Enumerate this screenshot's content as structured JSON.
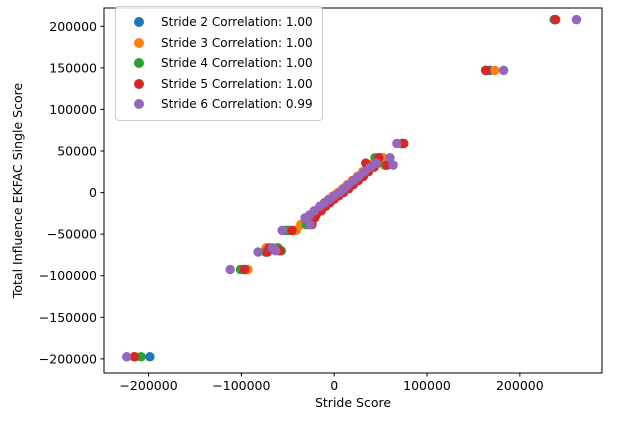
{
  "figure": {
    "background": "#ffffff",
    "axes_edge_color": "#000000"
  },
  "chart_data": {
    "type": "scatter",
    "title": "",
    "xlabel": "Stride Score",
    "ylabel": "Total Influence EKFAC Single Score",
    "xlim": [
      -248000,
      288500
    ],
    "ylim": [
      -217000,
      222000
    ],
    "xticks": [
      -200000,
      -100000,
      0,
      100000,
      200000
    ],
    "yticks": [
      -200000,
      -150000,
      -100000,
      -50000,
      0,
      50000,
      100000,
      150000,
      200000
    ],
    "grid": false,
    "legend_position": "upper left",
    "marker_diameter_px": 9.5,
    "series": [
      {
        "name": "Stride 2 Correlation: 1.00",
        "correlation": "1.00",
        "color": "#1f77b4",
        "points": [
          [
            -198500,
            -197500
          ],
          [
            -97000,
            -92500
          ],
          [
            -73000,
            -71500
          ],
          [
            -59000,
            -70000
          ],
          [
            -61000,
            -66500
          ],
          [
            -52000,
            -45500
          ],
          [
            -28000,
            -30500
          ],
          [
            -27000,
            -38500
          ],
          [
            -24000,
            -27000
          ],
          [
            -18500,
            -22000
          ],
          [
            -13000,
            -16500
          ],
          [
            -8000,
            -12000
          ],
          [
            -3500,
            -8000
          ],
          [
            1500,
            -4000
          ],
          [
            6000,
            0
          ],
          [
            11000,
            4500
          ],
          [
            16000,
            9500
          ],
          [
            21000,
            14500
          ],
          [
            26500,
            19500
          ],
          [
            32000,
            25000
          ],
          [
            38000,
            30500
          ],
          [
            44000,
            35500
          ],
          [
            49000,
            42000
          ],
          [
            55000,
            33000
          ],
          [
            73000,
            59000
          ],
          [
            167500,
            147000
          ],
          [
            237000,
            208000
          ]
        ]
      },
      {
        "name": "Stride 3 Correlation: 1.00",
        "correlation": "1.00",
        "color": "#ff7f0e",
        "points": [
          [
            -214000,
            -197500
          ],
          [
            -93000,
            -92500
          ],
          [
            -73500,
            -71500
          ],
          [
            -59500,
            -70000
          ],
          [
            -73500,
            -66500
          ],
          [
            -41000,
            -45500
          ],
          [
            -26000,
            -30500
          ],
          [
            -36000,
            -38500
          ],
          [
            -25500,
            -27000
          ],
          [
            -20000,
            -22000
          ],
          [
            -15000,
            -16500
          ],
          [
            -10500,
            -12000
          ],
          [
            -6000,
            -8000
          ],
          [
            -1000,
            -4000
          ],
          [
            4000,
            0
          ],
          [
            9000,
            4500
          ],
          [
            14000,
            9500
          ],
          [
            19500,
            14500
          ],
          [
            25000,
            19500
          ],
          [
            30500,
            25000
          ],
          [
            36500,
            30500
          ],
          [
            42500,
            35500
          ],
          [
            52500,
            42000
          ],
          [
            54000,
            33000
          ],
          [
            72000,
            59000
          ],
          [
            173000,
            147000
          ],
          [
            237800,
            208000
          ]
        ]
      },
      {
        "name": "Stride 4 Correlation: 1.00",
        "correlation": "1.00",
        "color": "#2ca02c",
        "points": [
          [
            -208000,
            -197500
          ],
          [
            -101000,
            -92500
          ],
          [
            -74000,
            -71500
          ],
          [
            -57000,
            -70000
          ],
          [
            -60500,
            -66500
          ],
          [
            -49500,
            -45500
          ],
          [
            -29000,
            -30500
          ],
          [
            -30000,
            -38500
          ],
          [
            -23000,
            -27000
          ],
          [
            -17500,
            -22000
          ],
          [
            -11500,
            -16500
          ],
          [
            -6500,
            -12000
          ],
          [
            -2000,
            -8000
          ],
          [
            3000,
            -4000
          ],
          [
            8000,
            0
          ],
          [
            13000,
            4500
          ],
          [
            18000,
            9500
          ],
          [
            23500,
            14500
          ],
          [
            29000,
            19500
          ],
          [
            34500,
            25000
          ],
          [
            40500,
            30500
          ],
          [
            46500,
            35500
          ],
          [
            44000,
            42000
          ],
          [
            56000,
            33000
          ],
          [
            73500,
            59000
          ],
          [
            163000,
            147000
          ],
          [
            237500,
            208000
          ]
        ]
      },
      {
        "name": "Stride 5 Correlation: 1.00",
        "correlation": "1.00",
        "color": "#d62728",
        "points": [
          [
            -215500,
            -197500
          ],
          [
            -96500,
            -92500
          ],
          [
            -72000,
            -71500
          ],
          [
            -58500,
            -70000
          ],
          [
            -70000,
            -66500
          ],
          [
            -45500,
            -45500
          ],
          [
            -21000,
            -30500
          ],
          [
            -24000,
            -38500
          ],
          [
            -19500,
            -27000
          ],
          [
            -14000,
            -22000
          ],
          [
            -9000,
            -16500
          ],
          [
            -4500,
            -12000
          ],
          [
            0,
            -8000
          ],
          [
            5000,
            -4000
          ],
          [
            10000,
            0
          ],
          [
            15500,
            4500
          ],
          [
            20500,
            9500
          ],
          [
            26000,
            14500
          ],
          [
            31500,
            19500
          ],
          [
            37000,
            25000
          ],
          [
            43000,
            30500
          ],
          [
            34000,
            35500
          ],
          [
            48000,
            42000
          ],
          [
            57000,
            33000
          ],
          [
            75000,
            59000
          ],
          [
            163500,
            147000
          ],
          [
            238500,
            208000
          ]
        ]
      },
      {
        "name": "Stride 6 Correlation: 0.99",
        "correlation": "0.99",
        "color": "#9467bd",
        "points": [
          [
            -223500,
            -197500
          ],
          [
            -112000,
            -92500
          ],
          [
            -82000,
            -71500
          ],
          [
            -63000,
            -70000
          ],
          [
            -66500,
            -66500
          ],
          [
            -56000,
            -45500
          ],
          [
            -31500,
            -30500
          ],
          [
            -26000,
            -38500
          ],
          [
            -26500,
            -27000
          ],
          [
            -21500,
            -22000
          ],
          [
            -15500,
            -16500
          ],
          [
            -10000,
            -12000
          ],
          [
            -5000,
            -8000
          ],
          [
            0,
            -4000
          ],
          [
            5500,
            0
          ],
          [
            10500,
            4500
          ],
          [
            15500,
            9500
          ],
          [
            21000,
            14500
          ],
          [
            26500,
            19500
          ],
          [
            32500,
            25000
          ],
          [
            39000,
            30500
          ],
          [
            45500,
            35500
          ],
          [
            60000,
            42000
          ],
          [
            63500,
            33000
          ],
          [
            67500,
            59000
          ],
          [
            182500,
            147000
          ],
          [
            261000,
            208000
          ]
        ]
      }
    ]
  }
}
